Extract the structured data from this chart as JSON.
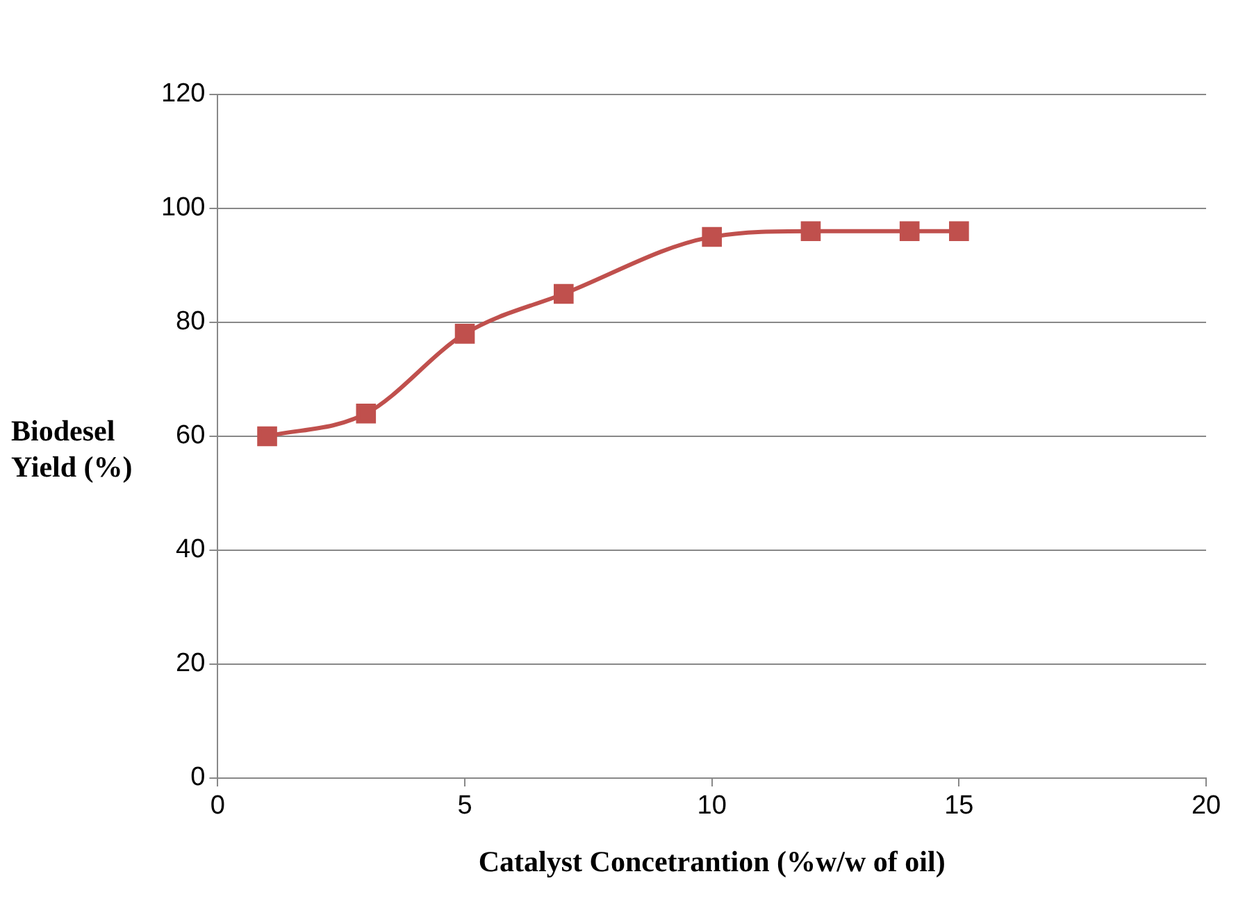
{
  "chart_data": {
    "type": "line",
    "xlabel": "Catalyst Concetrantion (%w/w of oil)",
    "ylabel": "Biodesel Yield (%)",
    "x": [
      1,
      3,
      5,
      7,
      10,
      12,
      14,
      15
    ],
    "series": [
      {
        "color": "#c0504d",
        "values": [
          60,
          64,
          78,
          85,
          95,
          96,
          96,
          96
        ]
      }
    ],
    "xlim": [
      0,
      20
    ],
    "xticks": [
      0,
      5,
      10,
      15,
      20
    ],
    "ylim": [
      0,
      120
    ],
    "yticks": [
      0,
      20,
      40,
      60,
      80,
      100,
      120
    ],
    "grid": "y",
    "legend": false,
    "marker": "square",
    "line_style": "solid"
  }
}
